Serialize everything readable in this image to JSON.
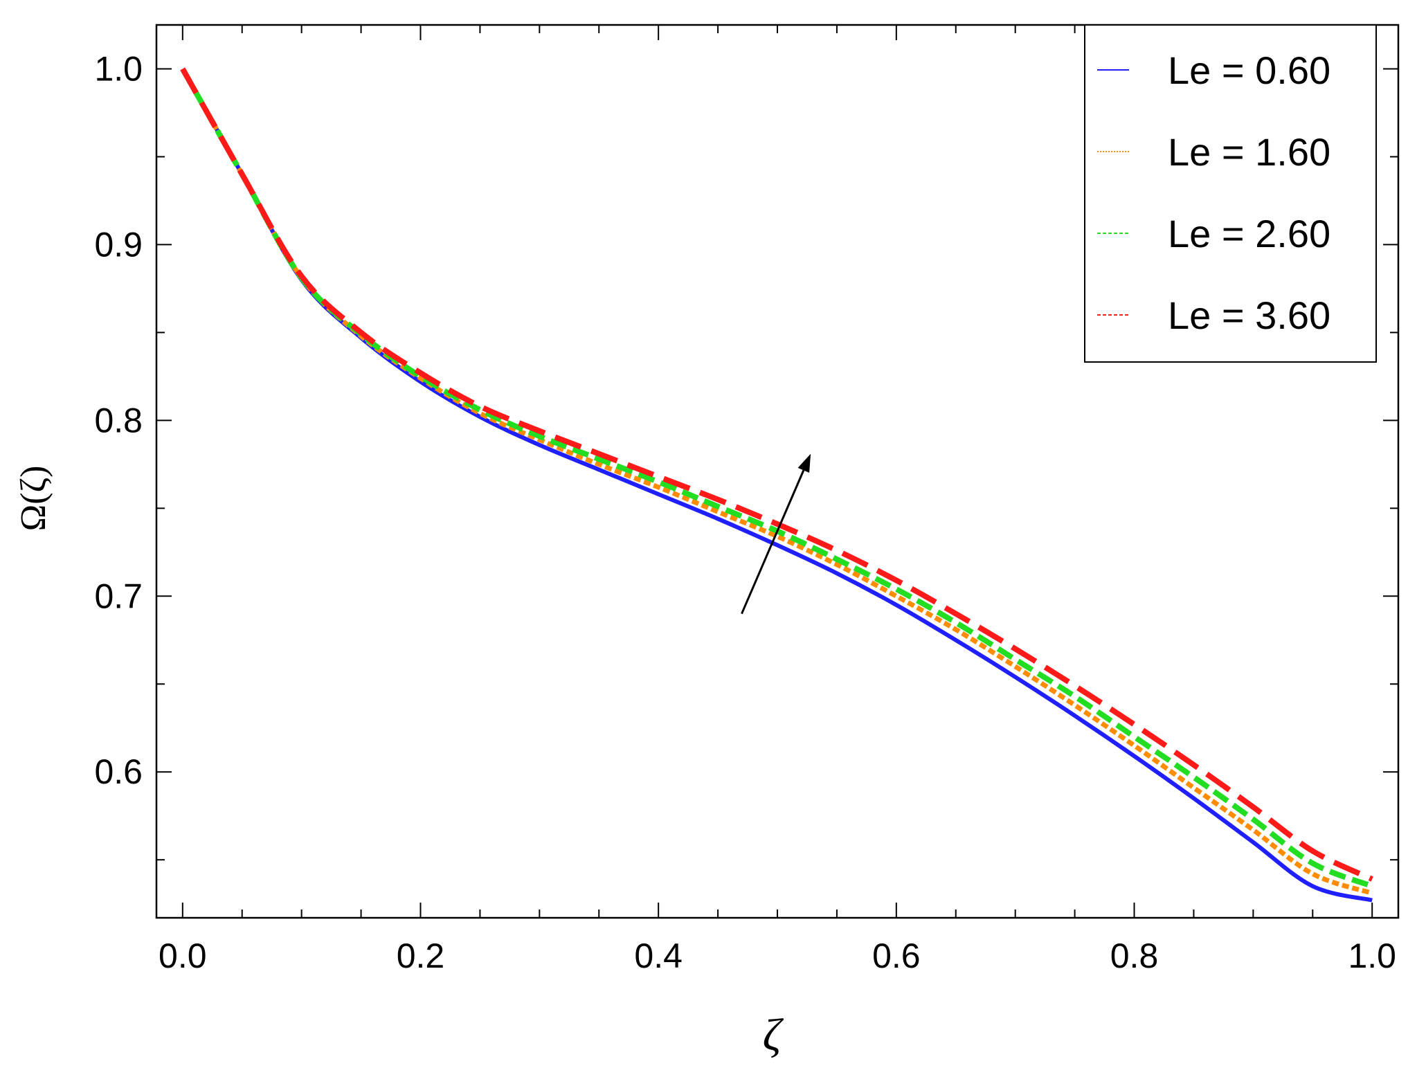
{
  "chart_data": {
    "type": "line",
    "title": "",
    "xlabel": "ζ",
    "ylabel": "Ω(ζ)",
    "xlim": [
      -0.022,
      1.022
    ],
    "ylim": [
      0.517,
      1.025
    ],
    "x_ticks": [
      "0.0",
      "0.2",
      "0.4",
      "0.6",
      "0.8",
      "1.0"
    ],
    "x_tick_values": [
      0.0,
      0.2,
      0.4,
      0.6,
      0.8,
      1.0
    ],
    "y_ticks": [
      "0.6",
      "0.7",
      "0.8",
      "0.9",
      "1.0"
    ],
    "y_tick_values": [
      0.6,
      0.7,
      0.8,
      0.9,
      1.0
    ],
    "grid": false,
    "legend_position": "top-right",
    "x": [
      0.0,
      0.05,
      0.1,
      0.15,
      0.2,
      0.25,
      0.3,
      0.35,
      0.4,
      0.45,
      0.5,
      0.55,
      0.6,
      0.65,
      0.7,
      0.75,
      0.8,
      0.85,
      0.9,
      0.95,
      1.0
    ],
    "series": [
      {
        "name": "Le = 0.60",
        "color": "#1f1fff",
        "style": "solid",
        "values": [
          1.0,
          0.94,
          0.88,
          0.847,
          0.822,
          0.802,
          0.786,
          0.772,
          0.758,
          0.744,
          0.729,
          0.713,
          0.695,
          0.675,
          0.654,
          0.632,
          0.609,
          0.585,
          0.56,
          0.535,
          0.527
        ]
      },
      {
        "name": "Le = 1.60",
        "color": "#ff8c00",
        "style": "dotted",
        "values": [
          1.0,
          0.94,
          0.881,
          0.848,
          0.824,
          0.804,
          0.789,
          0.775,
          0.762,
          0.748,
          0.734,
          0.718,
          0.7,
          0.681,
          0.66,
          0.638,
          0.615,
          0.591,
          0.567,
          0.542,
          0.531
        ]
      },
      {
        "name": "Le = 2.60",
        "color": "#22dd22",
        "style": "dashed",
        "values": [
          1.0,
          0.94,
          0.881,
          0.849,
          0.825,
          0.806,
          0.791,
          0.778,
          0.765,
          0.751,
          0.737,
          0.721,
          0.704,
          0.685,
          0.664,
          0.643,
          0.62,
          0.597,
          0.573,
          0.548,
          0.535
        ]
      },
      {
        "name": "Le = 3.60",
        "color": "#ff1a1a",
        "style": "longdash",
        "values": [
          1.0,
          0.94,
          0.882,
          0.85,
          0.827,
          0.808,
          0.794,
          0.781,
          0.768,
          0.755,
          0.741,
          0.726,
          0.709,
          0.69,
          0.67,
          0.649,
          0.627,
          0.604,
          0.58,
          0.555,
          0.539
        ]
      }
    ],
    "annotations": [
      {
        "type": "arrow",
        "from": [
          0.47,
          0.69
        ],
        "to": [
          0.528,
          0.781
        ]
      }
    ]
  }
}
